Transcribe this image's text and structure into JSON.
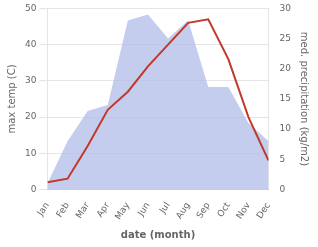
{
  "chart_data": {
    "type": "line",
    "categories": [
      "Jan",
      "Feb",
      "Mar",
      "Apr",
      "May",
      "Jun",
      "Jul",
      "Aug",
      "Sep",
      "Oct",
      "Nov",
      "Dec"
    ],
    "series": [
      {
        "type": "area",
        "axis": "y2",
        "color": "#b0bce8",
        "values": [
          1,
          8,
          13,
          14,
          28,
          29,
          25,
          28,
          17,
          17,
          11,
          8
        ]
      },
      {
        "type": "line",
        "color": "#c0392b",
        "values": [
          2,
          3,
          12,
          22,
          27,
          34,
          40,
          46,
          47,
          36,
          20,
          8
        ]
      }
    ],
    "xlabel": "date (month)",
    "ylabel": "max temp (C)",
    "y2label": "med. precipitation (kg/m2)",
    "ylim": [
      0,
      50
    ],
    "yticks": [
      0,
      10,
      20,
      30,
      40,
      50
    ],
    "y2lim": [
      0,
      30
    ],
    "y2ticks": [
      0,
      5,
      10,
      15,
      20,
      25,
      30
    ],
    "grid": true
  }
}
